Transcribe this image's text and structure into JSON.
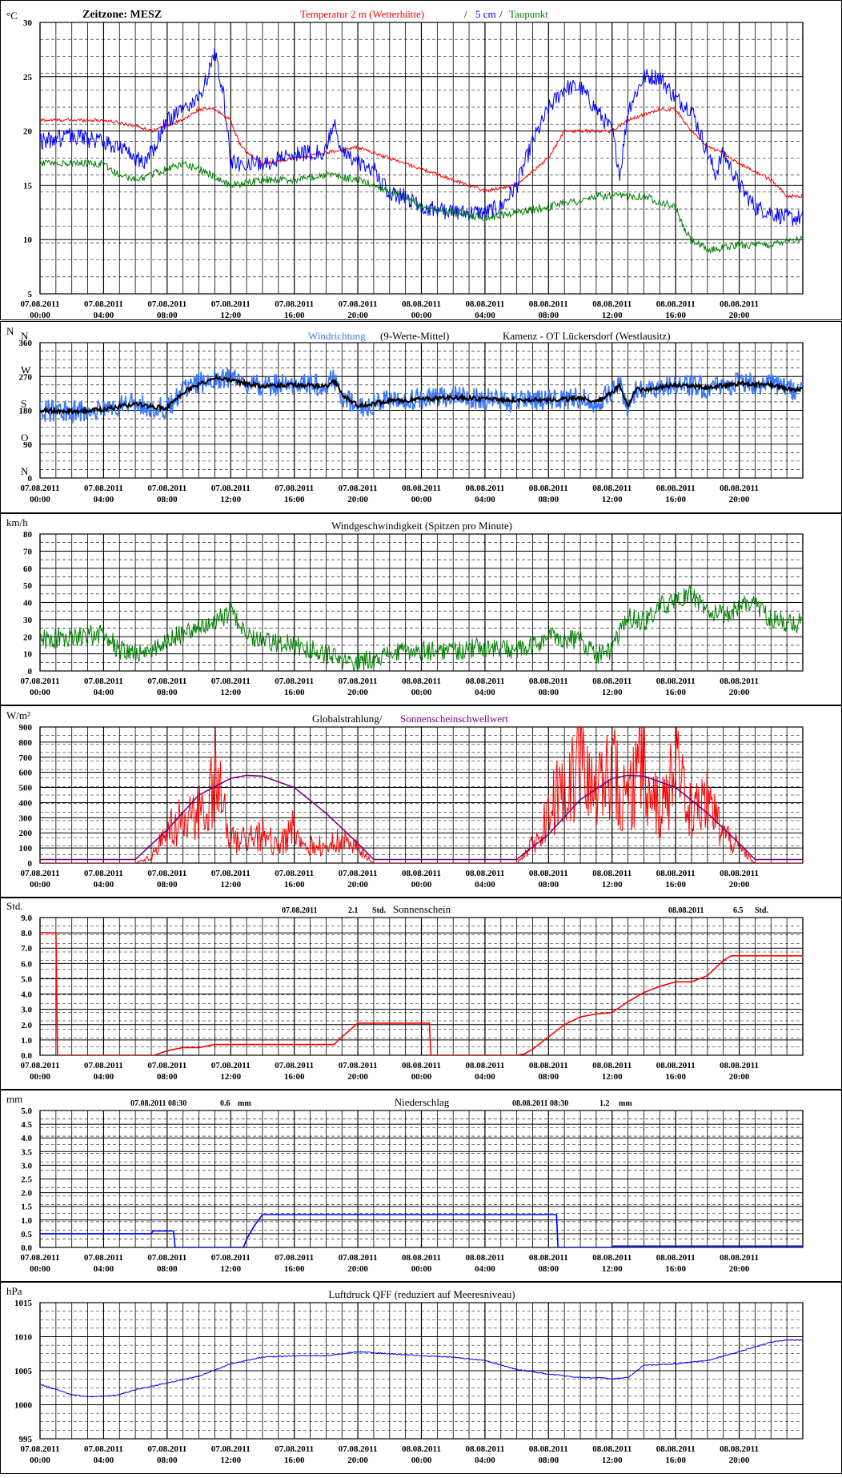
{
  "x_labels": [
    [
      "07.08.2011",
      "00:00"
    ],
    [
      "07.08.2011",
      "04:00"
    ],
    [
      "07.08.2011",
      "08:00"
    ],
    [
      "07.08.2011",
      "12:00"
    ],
    [
      "07.08.2011",
      "16:00"
    ],
    [
      "07.08.2011",
      "20:00"
    ],
    [
      "08.08.2011",
      "00:00"
    ],
    [
      "08.08.2011",
      "04:00"
    ],
    [
      "08.08.2011",
      "08:00"
    ],
    [
      "08.08.2011",
      "12:00"
    ],
    [
      "08.08.2011",
      "16:00"
    ],
    [
      "08.08.2011",
      "20:00"
    ]
  ],
  "colors": {
    "red": "#ff0000",
    "blue": "#0000ff",
    "lightblue": "#3a78ff",
    "green": "#008000",
    "purple": "#800080",
    "black": "#000000",
    "bg": "#ffffff"
  },
  "chart_data": [
    {
      "id": "temperature",
      "type": "line",
      "unit_label": "°C",
      "ylim": [
        5,
        30
      ],
      "yticks": [
        5,
        10,
        15,
        20,
        25,
        30
      ],
      "texts": {
        "zone": "Zeitzone: MESZ",
        "t2m": "Temperatur 2 m (Wetterhütte)",
        "sep": "/",
        "t5": "5 cm",
        "sep2": "/",
        "dew": "Taupunkt"
      },
      "series": [
        {
          "name": "Temperatur 2 m (Wetterhütte)",
          "color": "#ff0000",
          "x": [
            0,
            2,
            4,
            6,
            7,
            8,
            9,
            10,
            11,
            12,
            12.5,
            13,
            14,
            16,
            18,
            20,
            21,
            22,
            24,
            26,
            28,
            30,
            32,
            33,
            34,
            35,
            36,
            37,
            38,
            39,
            40,
            41,
            42,
            43,
            44,
            46,
            47
          ],
          "y": [
            21,
            21,
            21,
            20.5,
            20,
            20.5,
            21,
            22,
            22,
            21,
            19,
            18,
            17,
            17.5,
            18,
            18.5,
            18,
            17.5,
            16.5,
            15.5,
            14.5,
            15,
            17.5,
            20,
            20,
            20,
            20,
            21,
            21.5,
            22,
            22,
            20,
            18.5,
            18,
            17,
            15.5,
            14
          ]
        },
        {
          "name": "5 cm",
          "color": "#0000ff",
          "x": [
            0,
            2,
            4,
            5,
            6,
            6.5,
            7,
            8,
            9,
            10,
            11,
            11.5,
            12,
            13,
            14,
            15,
            16,
            18,
            18.5,
            19,
            20,
            21,
            22,
            23,
            24,
            26,
            28,
            29,
            30,
            31,
            32,
            33,
            34,
            35,
            36,
            36.5,
            37,
            38,
            39,
            40,
            41,
            42,
            42.5,
            43,
            44,
            45,
            47
          ],
          "y": [
            19,
            19.5,
            19,
            18.5,
            17.5,
            17,
            18,
            21,
            22,
            23,
            27,
            24,
            17,
            17,
            17,
            17.5,
            18,
            18,
            21,
            18,
            17,
            16.5,
            14,
            14,
            13,
            12.5,
            12.5,
            13,
            15,
            19,
            22,
            24,
            24,
            22,
            20,
            16,
            22,
            25,
            25,
            23,
            22,
            18,
            16,
            18,
            15,
            13,
            12
          ]
        },
        {
          "name": "Taupunkt",
          "color": "#008000",
          "x": [
            0,
            2,
            4,
            5,
            6,
            8,
            9,
            10,
            12,
            14,
            16,
            18,
            20,
            22,
            24,
            26,
            28,
            30,
            32,
            33,
            34,
            35,
            36,
            38,
            39,
            40,
            40.5,
            41,
            42,
            44,
            46,
            47
          ],
          "y": [
            17,
            17,
            17,
            16,
            15.5,
            16.5,
            17,
            16.5,
            15,
            15.5,
            15.5,
            16,
            15.5,
            14.5,
            13,
            12.5,
            12,
            12.5,
            13,
            13.5,
            13.5,
            14,
            14,
            14,
            13.5,
            13,
            11,
            10,
            9,
            9.5,
            9.5,
            10
          ]
        }
      ]
    },
    {
      "id": "wind_direction",
      "type": "line",
      "ylim": [
        0,
        360
      ],
      "yticks": [
        0,
        90,
        180,
        270,
        360
      ],
      "compass": [
        {
          "label": "N",
          "v": 0
        },
        {
          "label": "O",
          "v": 90
        },
        {
          "label": "S",
          "v": 180
        },
        {
          "label": "W",
          "v": 270
        },
        {
          "label": "N",
          "v": 360
        }
      ],
      "unit_label": "N",
      "texts": {
        "title1": "Windrichtung",
        "title2": "(9-Werte-Mittel)",
        "station": "Kamenz - OT Lückersdorf (Westlausitz)"
      },
      "series": [
        {
          "name": "Windrichtung",
          "color": "#3a78ff",
          "x": [
            0,
            2,
            4,
            6,
            7,
            8,
            9,
            10,
            11,
            12,
            14,
            16,
            18,
            18.5,
            19,
            20,
            22,
            24,
            26,
            28,
            30,
            31,
            32,
            34,
            35,
            36,
            36.5,
            37,
            37.5,
            38,
            40,
            42,
            44,
            46,
            47
          ],
          "y": [
            180,
            175,
            180,
            200,
            190,
            185,
            230,
            250,
            270,
            260,
            245,
            250,
            245,
            265,
            220,
            190,
            205,
            210,
            215,
            210,
            205,
            210,
            205,
            215,
            200,
            230,
            250,
            180,
            240,
            235,
            250,
            240,
            255,
            250,
            235
          ]
        },
        {
          "name": "9-Werte-Mittel",
          "color": "#000000",
          "x": [
            0,
            2,
            4,
            6,
            7,
            8,
            9,
            10,
            11,
            12,
            14,
            16,
            18,
            18.5,
            19,
            20,
            22,
            24,
            26,
            28,
            30,
            31,
            32,
            34,
            35,
            36,
            36.5,
            37,
            37.5,
            38,
            40,
            42,
            44,
            46,
            47
          ],
          "y": [
            180,
            178,
            182,
            198,
            190,
            186,
            228,
            248,
            268,
            258,
            244,
            248,
            244,
            260,
            222,
            192,
            204,
            210,
            214,
            210,
            206,
            210,
            206,
            212,
            202,
            228,
            248,
            186,
            236,
            234,
            248,
            240,
            252,
            248,
            236
          ]
        }
      ]
    },
    {
      "id": "wind_speed",
      "type": "line",
      "unit_label": "km/h",
      "ylim": [
        0,
        80
      ],
      "yticks": [
        0,
        10,
        20,
        30,
        40,
        50,
        60,
        70,
        80
      ],
      "texts": {
        "title": "Windgeschwindigkeit (Spitzen pro Minute)"
      },
      "series": [
        {
          "name": "Windgeschwindigkeit",
          "color": "#008000",
          "x": [
            0,
            2,
            4,
            5,
            6,
            7,
            8,
            9,
            10,
            11,
            12,
            13,
            14,
            16,
            18,
            19,
            20,
            22,
            24,
            26,
            28,
            30,
            31,
            32,
            34,
            35,
            36,
            37,
            38,
            39,
            40,
            41,
            42,
            43,
            44,
            45,
            46,
            47
          ],
          "y": [
            18,
            20,
            22,
            12,
            10,
            12,
            18,
            22,
            25,
            28,
            35,
            22,
            18,
            15,
            10,
            5,
            5,
            10,
            12,
            12,
            14,
            12,
            14,
            20,
            18,
            10,
            12,
            32,
            28,
            38,
            40,
            45,
            35,
            32,
            38,
            40,
            30,
            28
          ]
        }
      ]
    },
    {
      "id": "global_radiation",
      "type": "line",
      "unit_label": "W/m²",
      "ylim": [
        0,
        900
      ],
      "yticks": [
        0,
        100,
        200,
        300,
        400,
        500,
        600,
        700,
        800,
        900
      ],
      "texts": {
        "title1": "Globalstrahlung/",
        "title2": "Sonnenscheinschwellwert"
      },
      "series": [
        {
          "name": "Globalstrahlung",
          "color": "#ff0000",
          "x": [
            0,
            6,
            7,
            8,
            9,
            10,
            10.5,
            11,
            11.5,
            12,
            13,
            14,
            15,
            16,
            17,
            18,
            19,
            20,
            21,
            30,
            31,
            32,
            33,
            34,
            35,
            36,
            37,
            38,
            39,
            40,
            41,
            42,
            43,
            44,
            45,
            47
          ],
          "y": [
            0,
            0,
            40,
            200,
            300,
            350,
            200,
            700,
            400,
            150,
            150,
            200,
            100,
            250,
            120,
            110,
            150,
            100,
            0,
            0,
            120,
            350,
            500,
            700,
            450,
            600,
            400,
            700,
            300,
            650,
            300,
            400,
            200,
            100,
            0,
            0
          ]
        },
        {
          "name": "Sonnenscheinschwellwert",
          "color": "#800080",
          "x": [
            0,
            6,
            8,
            10,
            12,
            13,
            14,
            16,
            18,
            20,
            21,
            30,
            32,
            34,
            36,
            37,
            38,
            40,
            42,
            44,
            45,
            47
          ],
          "y": [
            24,
            24,
            220,
            450,
            560,
            580,
            575,
            500,
            330,
            130,
            24,
            24,
            190,
            420,
            560,
            580,
            575,
            500,
            330,
            130,
            24,
            24
          ]
        }
      ]
    },
    {
      "id": "sunshine",
      "type": "line",
      "unit_label": "Std.",
      "ylim": [
        0,
        9
      ],
      "yticks": [
        0,
        1,
        2,
        3,
        4,
        5,
        6,
        7,
        8,
        9
      ],
      "tick_decimals": 1,
      "texts": {
        "title": "Sonnenschein",
        "d1": "07.08.2011",
        "v1": "2.1",
        "u1": "Std.",
        "d2": "08.08.2011",
        "v2": "6.5",
        "u2": "Std."
      },
      "series": [
        {
          "name": "Sonnenschein",
          "color": "#ff0000",
          "x": [
            0,
            1,
            1.1,
            7.2,
            8,
            9,
            10,
            11,
            13,
            16,
            18.5,
            19,
            20,
            21,
            24,
            24.5,
            24.6,
            30,
            30.5,
            31,
            32,
            33,
            34,
            35,
            36,
            37,
            38,
            39,
            40,
            41,
            42,
            43,
            43.5,
            47
          ],
          "y": [
            8,
            8,
            0,
            0,
            0.3,
            0.5,
            0.5,
            0.7,
            0.7,
            0.7,
            0.7,
            1.2,
            2.1,
            2.1,
            2.1,
            2.1,
            0,
            0,
            0.1,
            0.4,
            1.2,
            2,
            2.5,
            2.7,
            2.8,
            3.5,
            4.1,
            4.5,
            4.8,
            4.8,
            5.2,
            6.2,
            6.5,
            6.5
          ]
        }
      ]
    },
    {
      "id": "precipitation",
      "type": "line",
      "unit_label": "mm",
      "ylim": [
        0,
        5
      ],
      "yticks": [
        0,
        0.5,
        1,
        1.5,
        2,
        2.5,
        3,
        3.5,
        4,
        4.5,
        5
      ],
      "tick_decimals": 1,
      "texts": {
        "title": "Niederschlag",
        "d1": "07.08.2011 08:30",
        "v1": "0.6",
        "u1": "mm",
        "d2": "08.08.2011 08:30",
        "v2": "1.2",
        "u2": "mm"
      },
      "series": [
        {
          "name": "Niederschlag",
          "color": "#0000ff",
          "x": [
            0,
            7,
            7.1,
            8.4,
            8.5,
            12.8,
            13,
            13.5,
            14,
            20,
            30,
            32.5,
            32.6,
            36,
            36.1,
            47
          ],
          "y": [
            0.5,
            0.5,
            0.6,
            0.6,
            0,
            0,
            0.3,
            0.8,
            1.2,
            1.2,
            1.2,
            1.2,
            0,
            0,
            0.05,
            0.05
          ]
        }
      ]
    },
    {
      "id": "pressure",
      "type": "line",
      "unit_label": "hPa",
      "ylim": [
        995,
        1015
      ],
      "yticks": [
        995,
        1000,
        1005,
        1010,
        1015
      ],
      "texts": {
        "title": "Luftdruck QFF (reduziert auf Meeresniveau)"
      },
      "series": [
        {
          "name": "Luftdruck QFF",
          "color": "#0000ff",
          "x": [
            0,
            2,
            3,
            4,
            5,
            6,
            8,
            10,
            12,
            14,
            16,
            18,
            20,
            22,
            24,
            26,
            28,
            30,
            32,
            34,
            35,
            36,
            37,
            38,
            40,
            42,
            44,
            46,
            47
          ],
          "y": [
            1003,
            1001.5,
            1001.2,
            1001.2,
            1001.5,
            1002.2,
            1003.2,
            1004.2,
            1006,
            1007,
            1007.2,
            1007.2,
            1007.8,
            1007.5,
            1007.2,
            1007,
            1006.5,
            1005.2,
            1004.5,
            1004,
            1004,
            1003.8,
            1004,
            1005.8,
            1006,
            1006.5,
            1007.8,
            1009.2,
            1009.5
          ]
        }
      ]
    }
  ]
}
